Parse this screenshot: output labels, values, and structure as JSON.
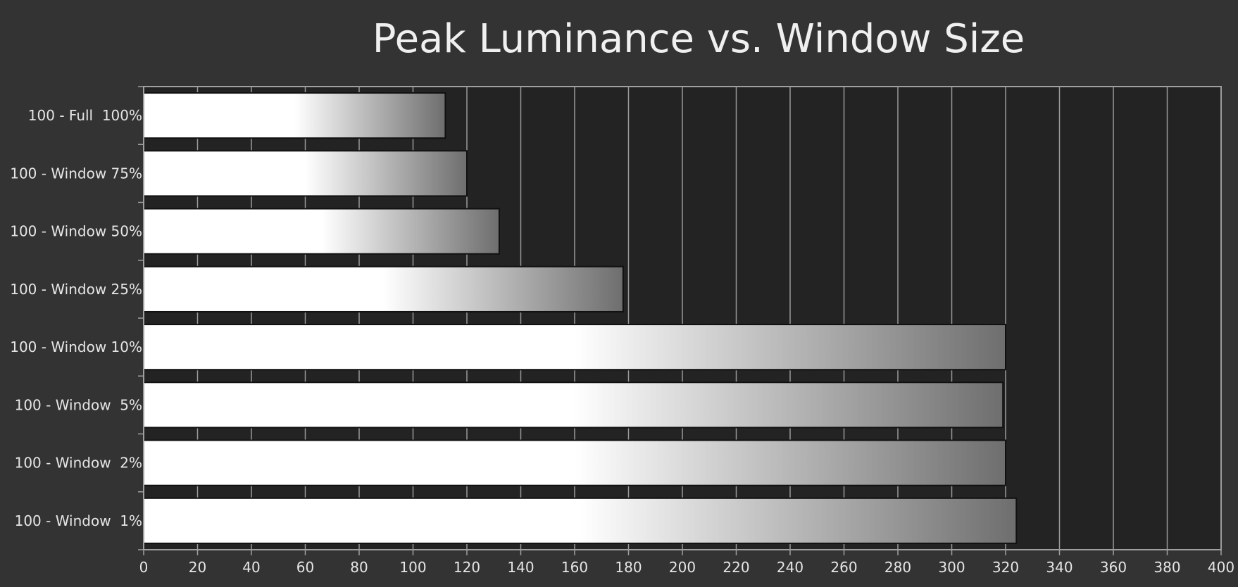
{
  "chart_data": {
    "type": "bar",
    "orientation": "horizontal",
    "title": "Peak Luminance vs. Window Size",
    "xlabel": "",
    "ylabel": "",
    "categories": [
      "100 - Full  100%",
      "100 - Window 75%",
      "100 - Window 50%",
      "100 - Window 25%",
      "100 - Window 10%",
      "100 - Window  5%",
      "100 - Window  2%",
      "100 - Window  1%"
    ],
    "values": [
      112,
      120,
      132,
      178,
      320,
      319,
      320,
      324
    ],
    "xlim": [
      0,
      400
    ],
    "x_ticks": [
      0,
      20,
      40,
      60,
      80,
      100,
      120,
      140,
      160,
      180,
      200,
      220,
      240,
      260,
      280,
      300,
      320,
      340,
      360,
      380,
      400
    ],
    "grid": "vertical",
    "legend": "none",
    "colors": {
      "page_background": "#333333",
      "plot_background": "#232323",
      "gridline": "#9a9a9a",
      "axis": "#a0a0a0",
      "text": "#e6e6e6",
      "bar_light": "#ffffff",
      "bar_dark": "#6e6e6e",
      "bar_border": "#111111"
    }
  }
}
